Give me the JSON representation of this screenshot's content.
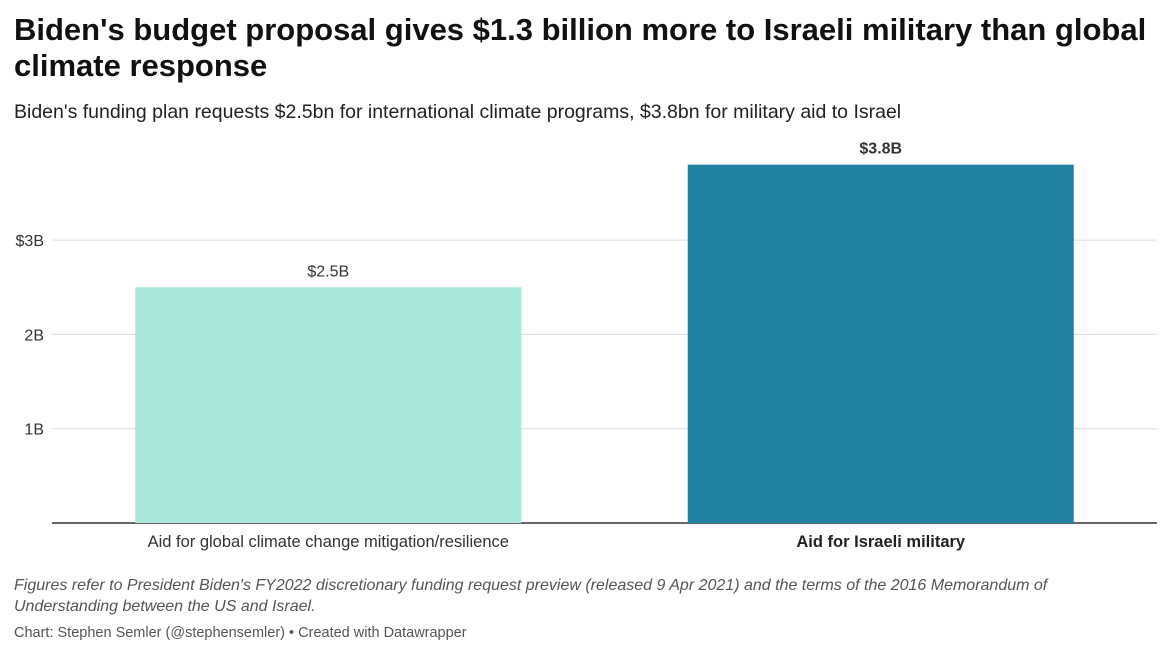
{
  "header": {
    "title": "Biden's budget proposal gives $1.3 billion more to Israeli military than global climate response",
    "subtitle": "Biden's funding plan requests $2.5bn for international climate programs, $3.8bn for military aid to Israel"
  },
  "chart_data": {
    "type": "bar",
    "title": "Biden's budget proposal gives $1.3 billion more to Israeli military than global climate response",
    "subtitle": "Biden's funding plan requests $2.5bn for international climate programs, $3.8bn for military aid to Israel",
    "categories": [
      "Aid for global climate change mitigation/resilience",
      "Aid for Israeli military"
    ],
    "values": [
      2.5,
      3.8
    ],
    "value_labels": [
      "$2.5B",
      "$3.8B"
    ],
    "unit": "billion USD",
    "y_ticks": [
      1,
      2,
      3
    ],
    "y_tick_labels": [
      "1B",
      "2B",
      "$3B"
    ],
    "ylim": [
      0,
      4
    ],
    "xlabel": "",
    "ylabel": "",
    "grid": true,
    "colors": [
      "#a8e6dc",
      "#1f82a1"
    ],
    "emphasized_category": 1
  },
  "footer": {
    "notes": "Figures refer to President Biden's FY2022 discretionary funding request preview (released 9 Apr 2021) and the terms of the 2016 Memorandum of Understanding between the US and Israel.",
    "credit": "Chart: Stephen Semler (@stephensemler) • Created with Datawrapper"
  },
  "colors": {
    "grid": "#dcdcdc",
    "axis": "#333333",
    "text": "#333333",
    "label": "#444444"
  }
}
